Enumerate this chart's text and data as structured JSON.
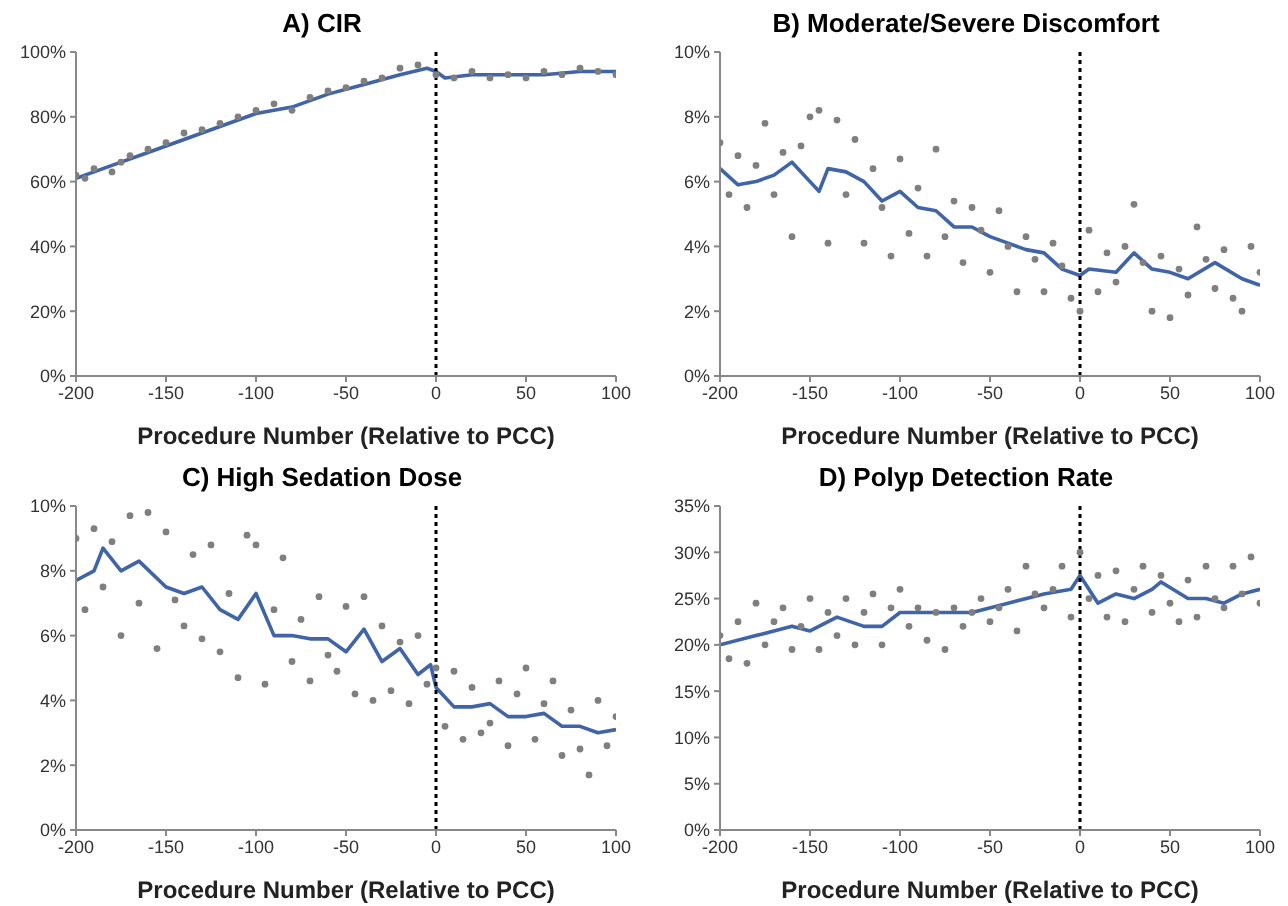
{
  "chart_data": [
    {
      "type": "scatter",
      "title": "A) CIR",
      "xlabel": "Procedure Number (Relative to PCC)",
      "xlim": [
        -200,
        100
      ],
      "xticks": [
        -200,
        -150,
        -100,
        -50,
        0,
        50,
        100
      ],
      "ylim": [
        0,
        100
      ],
      "yticks": [
        {
          "value": 0,
          "label": "0%"
        },
        {
          "value": 20,
          "label": "20%"
        },
        {
          "value": 40,
          "label": "40%"
        },
        {
          "value": 60,
          "label": "60%"
        },
        {
          "value": 80,
          "label": "80%"
        },
        {
          "value": 100,
          "label": "100%"
        }
      ],
      "grid": false,
      "legend": false,
      "ref_lines": [
        {
          "axis": "x",
          "value": 0,
          "color": "#000000",
          "line_style": "dotted"
        }
      ],
      "series": [
        {
          "type": "scatter",
          "color": "#7f7f7f",
          "marker": "circle",
          "x": [
            -200,
            -195,
            -190,
            -180,
            -175,
            -170,
            -160,
            -150,
            -140,
            -130,
            -120,
            -110,
            -100,
            -90,
            -80,
            -70,
            -60,
            -50,
            -40,
            -30,
            -20,
            -10,
            0,
            10,
            20,
            30,
            40,
            50,
            60,
            70,
            80,
            90,
            100
          ],
          "values": [
            62,
            61,
            64,
            63,
            66,
            68,
            70,
            72,
            75,
            76,
            78,
            80,
            82,
            84,
            82,
            86,
            88,
            89,
            91,
            92,
            95,
            96,
            93,
            92,
            94,
            92,
            93,
            92,
            94,
            93,
            95,
            94,
            93
          ]
        },
        {
          "type": "line",
          "color": "#3f64a8",
          "x": [
            -200,
            -180,
            -160,
            -140,
            -120,
            -100,
            -80,
            -60,
            -40,
            -20,
            -5,
            0,
            5,
            20,
            40,
            60,
            80,
            100
          ],
          "values": [
            61,
            65,
            69,
            73,
            77,
            81,
            83,
            87,
            90,
            93,
            95,
            94,
            92,
            93,
            93,
            93,
            94,
            94
          ]
        }
      ]
    },
    {
      "type": "scatter",
      "title": "B) Moderate/Severe Discomfort",
      "xlabel": "Procedure Number (Relative to PCC)",
      "xlim": [
        -200,
        100
      ],
      "xticks": [
        -200,
        -150,
        -100,
        -50,
        0,
        50,
        100
      ],
      "ylim": [
        0,
        10
      ],
      "yticks": [
        {
          "value": 0,
          "label": "0%"
        },
        {
          "value": 2,
          "label": "2%"
        },
        {
          "value": 4,
          "label": "4%"
        },
        {
          "value": 6,
          "label": "6%"
        },
        {
          "value": 8,
          "label": "8%"
        },
        {
          "value": 10,
          "label": "10%"
        }
      ],
      "grid": false,
      "legend": false,
      "ref_lines": [
        {
          "axis": "x",
          "value": 0,
          "color": "#000000",
          "line_style": "dotted"
        }
      ],
      "series": [
        {
          "type": "scatter",
          "color": "#7f7f7f",
          "marker": "circle",
          "x": [
            -200,
            -195,
            -190,
            -185,
            -180,
            -175,
            -170,
            -165,
            -160,
            -155,
            -150,
            -145,
            -140,
            -135,
            -130,
            -125,
            -120,
            -115,
            -110,
            -105,
            -100,
            -95,
            -90,
            -85,
            -80,
            -75,
            -70,
            -65,
            -60,
            -55,
            -50,
            -45,
            -40,
            -35,
            -30,
            -25,
            -20,
            -15,
            -10,
            -5,
            0,
            5,
            10,
            15,
            20,
            25,
            30,
            35,
            40,
            45,
            50,
            55,
            60,
            65,
            70,
            75,
            80,
            85,
            90,
            95,
            100
          ],
          "values": [
            7.2,
            5.6,
            6.8,
            5.2,
            6.5,
            7.8,
            5.6,
            6.9,
            4.3,
            7.1,
            8.0,
            8.2,
            4.1,
            7.9,
            5.6,
            7.3,
            4.1,
            6.4,
            5.2,
            3.7,
            6.7,
            4.4,
            5.8,
            3.7,
            7.0,
            4.3,
            5.4,
            3.5,
            5.2,
            4.5,
            3.2,
            5.1,
            4.0,
            2.6,
            4.3,
            3.6,
            2.6,
            4.1,
            3.4,
            2.4,
            2.0,
            4.5,
            2.6,
            3.8,
            2.9,
            4.0,
            5.3,
            3.5,
            2.0,
            3.7,
            1.8,
            3.3,
            2.5,
            4.6,
            3.6,
            2.7,
            3.9,
            2.4,
            2.0,
            4.0,
            3.2
          ]
        },
        {
          "type": "line",
          "color": "#3f64a8",
          "x": [
            -200,
            -190,
            -180,
            -170,
            -160,
            -150,
            -145,
            -140,
            -130,
            -120,
            -110,
            -100,
            -90,
            -80,
            -70,
            -60,
            -50,
            -40,
            -30,
            -20,
            -10,
            0,
            5,
            20,
            30,
            40,
            50,
            60,
            75,
            90,
            100
          ],
          "values": [
            6.4,
            5.9,
            6.0,
            6.2,
            6.6,
            6.0,
            5.7,
            6.4,
            6.3,
            6.0,
            5.4,
            5.7,
            5.2,
            5.1,
            4.6,
            4.6,
            4.3,
            4.1,
            3.9,
            3.8,
            3.3,
            3.1,
            3.3,
            3.2,
            3.8,
            3.3,
            3.2,
            3.0,
            3.5,
            3.0,
            2.8
          ]
        }
      ]
    },
    {
      "type": "scatter",
      "title": "C) High Sedation Dose",
      "xlabel": "Procedure Number (Relative to PCC)",
      "xlim": [
        -200,
        100
      ],
      "xticks": [
        -200,
        -150,
        -100,
        -50,
        0,
        50,
        100
      ],
      "ylim": [
        0,
        10
      ],
      "yticks": [
        {
          "value": 0,
          "label": "0%"
        },
        {
          "value": 2,
          "label": "2%"
        },
        {
          "value": 4,
          "label": "4%"
        },
        {
          "value": 6,
          "label": "6%"
        },
        {
          "value": 8,
          "label": "8%"
        },
        {
          "value": 10,
          "label": "10%"
        }
      ],
      "grid": false,
      "legend": false,
      "ref_lines": [
        {
          "axis": "x",
          "value": 0,
          "color": "#000000",
          "line_style": "dotted"
        }
      ],
      "series": [
        {
          "type": "scatter",
          "color": "#7f7f7f",
          "marker": "circle",
          "x": [
            -200,
            -195,
            -190,
            -185,
            -180,
            -175,
            -170,
            -165,
            -160,
            -155,
            -150,
            -145,
            -140,
            -135,
            -130,
            -125,
            -120,
            -115,
            -110,
            -105,
            -100,
            -95,
            -90,
            -85,
            -80,
            -75,
            -70,
            -65,
            -60,
            -55,
            -50,
            -45,
            -40,
            -35,
            -30,
            -25,
            -20,
            -15,
            -10,
            -5,
            0,
            5,
            10,
            15,
            20,
            25,
            30,
            35,
            40,
            45,
            50,
            55,
            60,
            65,
            70,
            75,
            80,
            85,
            90,
            95,
            100
          ],
          "values": [
            9.0,
            6.8,
            9.3,
            7.5,
            8.9,
            6.0,
            9.7,
            7.0,
            9.8,
            5.6,
            9.2,
            7.1,
            6.3,
            8.5,
            5.9,
            8.8,
            5.5,
            7.3,
            4.7,
            9.1,
            8.8,
            4.5,
            6.8,
            8.4,
            5.2,
            6.5,
            4.6,
            7.2,
            5.4,
            4.9,
            6.9,
            4.2,
            7.2,
            4.0,
            6.3,
            4.3,
            5.8,
            3.9,
            6.0,
            4.5,
            5.0,
            3.2,
            4.9,
            2.8,
            4.4,
            3.0,
            3.3,
            4.6,
            2.6,
            4.2,
            5.0,
            2.8,
            3.9,
            4.6,
            2.3,
            3.7,
            2.5,
            1.7,
            4.0,
            2.6,
            3.5
          ]
        },
        {
          "type": "line",
          "color": "#3f64a8",
          "x": [
            -200,
            -190,
            -185,
            -175,
            -165,
            -150,
            -140,
            -130,
            -120,
            -110,
            -100,
            -90,
            -80,
            -70,
            -60,
            -50,
            -40,
            -30,
            -20,
            -10,
            -3,
            0,
            10,
            20,
            30,
            40,
            50,
            60,
            70,
            80,
            90,
            100
          ],
          "values": [
            7.7,
            8.0,
            8.7,
            8.0,
            8.3,
            7.5,
            7.3,
            7.5,
            6.8,
            6.5,
            7.3,
            6.0,
            6.0,
            5.9,
            5.9,
            5.5,
            6.2,
            5.2,
            5.6,
            4.8,
            5.1,
            4.4,
            3.8,
            3.8,
            3.9,
            3.5,
            3.5,
            3.6,
            3.2,
            3.2,
            3.0,
            3.1
          ]
        }
      ]
    },
    {
      "type": "scatter",
      "title": "D) Polyp Detection Rate",
      "xlabel": "Procedure Number (Relative to PCC)",
      "xlim": [
        -200,
        100
      ],
      "xticks": [
        -200,
        -150,
        -100,
        -50,
        0,
        50,
        100
      ],
      "ylim": [
        0,
        35
      ],
      "yticks": [
        {
          "value": 0,
          "label": "0%"
        },
        {
          "value": 5,
          "label": "5%"
        },
        {
          "value": 10,
          "label": "10%"
        },
        {
          "value": 15,
          "label": "15%"
        },
        {
          "value": 20,
          "label": "20%"
        },
        {
          "value": 25,
          "label": "25%"
        },
        {
          "value": 30,
          "label": "30%"
        },
        {
          "value": 35,
          "label": "35%"
        }
      ],
      "grid": false,
      "legend": false,
      "ref_lines": [
        {
          "axis": "x",
          "value": 0,
          "color": "#000000",
          "line_style": "dotted"
        }
      ],
      "series": [
        {
          "type": "scatter",
          "color": "#7f7f7f",
          "marker": "circle",
          "x": [
            -200,
            -195,
            -190,
            -185,
            -180,
            -175,
            -170,
            -165,
            -160,
            -155,
            -150,
            -145,
            -140,
            -135,
            -130,
            -125,
            -120,
            -115,
            -110,
            -105,
            -100,
            -95,
            -90,
            -85,
            -80,
            -75,
            -70,
            -65,
            -60,
            -55,
            -50,
            -45,
            -40,
            -35,
            -30,
            -25,
            -20,
            -15,
            -10,
            -5,
            0,
            5,
            10,
            15,
            20,
            25,
            30,
            35,
            40,
            45,
            50,
            55,
            60,
            65,
            70,
            75,
            80,
            85,
            90,
            95,
            100
          ],
          "values": [
            21,
            18.5,
            22.5,
            18,
            24.5,
            20,
            22.5,
            24,
            19.5,
            22,
            25,
            19.5,
            23.5,
            21,
            25,
            20,
            23.5,
            25.5,
            20,
            24,
            26,
            22,
            24,
            20.5,
            23.5,
            19.5,
            24,
            22,
            23.5,
            25,
            22.5,
            24,
            26,
            21.5,
            28.5,
            25.5,
            24,
            26,
            28.5,
            23,
            30,
            25,
            27.5,
            23,
            28,
            22.5,
            26,
            28.5,
            23.5,
            27.5,
            24.5,
            22.5,
            27,
            23,
            28.5,
            25,
            24,
            28.5,
            25.5,
            29.5,
            24.5
          ]
        },
        {
          "type": "line",
          "color": "#3f64a8",
          "x": [
            -200,
            -180,
            -160,
            -150,
            -135,
            -120,
            -110,
            -100,
            -80,
            -60,
            -40,
            -20,
            -5,
            0,
            10,
            20,
            30,
            40,
            45,
            60,
            70,
            80,
            90,
            100
          ],
          "values": [
            20,
            21,
            22,
            21.5,
            23,
            22,
            22,
            23.5,
            23.5,
            23.5,
            24.5,
            25.5,
            26,
            27.5,
            24.5,
            25.5,
            25,
            26,
            26.8,
            25,
            25,
            24.5,
            25.5,
            26
          ]
        }
      ]
    }
  ]
}
